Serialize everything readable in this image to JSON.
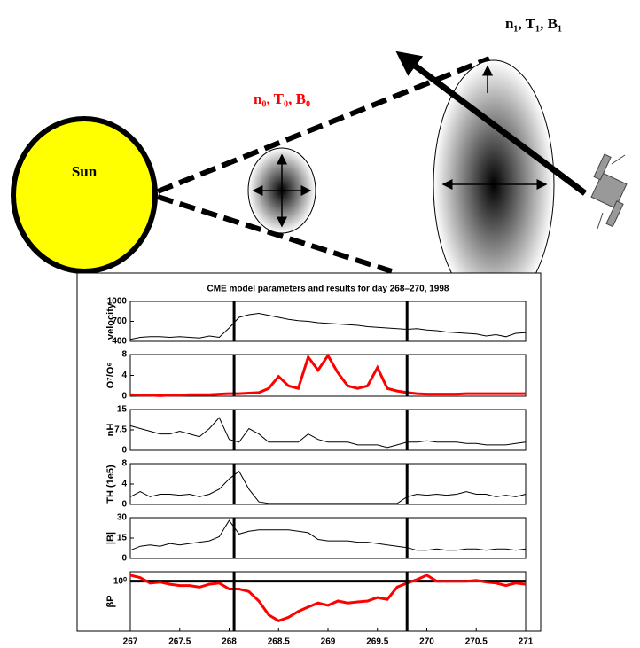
{
  "diagram": {
    "sun_label": "Sun",
    "inner_label": "n₀, T₀, B₀",
    "outer_label": "n₁, T₁, B₁",
    "figure_title": "CME model parameters and results for day 268–270, 1998"
  },
  "chart_data": [
    {
      "type": "line",
      "ylabel": "velocity",
      "color": "#000000",
      "xlim": [
        267,
        271
      ],
      "ylim": [
        400,
        1000
      ],
      "yticks": [
        400,
        700,
        1000
      ],
      "vlines": [
        268.05,
        269.8
      ],
      "x": [
        267,
        267.1,
        267.2,
        267.3,
        267.4,
        267.5,
        267.6,
        267.7,
        267.8,
        267.9,
        268,
        268.1,
        268.2,
        268.3,
        268.4,
        268.5,
        268.6,
        268.7,
        268.8,
        268.9,
        269,
        269.1,
        269.2,
        269.3,
        269.4,
        269.5,
        269.6,
        269.7,
        269.8,
        269.9,
        270,
        270.1,
        270.2,
        270.3,
        270.4,
        270.5,
        270.6,
        270.7,
        270.8,
        270.9,
        271
      ],
      "values": [
        430,
        460,
        470,
        470,
        460,
        470,
        460,
        450,
        480,
        460,
        600,
        760,
        800,
        820,
        790,
        760,
        730,
        710,
        700,
        680,
        670,
        660,
        650,
        640,
        620,
        610,
        600,
        590,
        580,
        590,
        570,
        560,
        540,
        530,
        520,
        510,
        480,
        500,
        470,
        520,
        530
      ]
    },
    {
      "type": "line",
      "ylabel": "O⁷/O⁶",
      "color": "#ff0000",
      "xlim": [
        267,
        271
      ],
      "ylim": [
        0,
        8
      ],
      "yticks": [
        0,
        4,
        8
      ],
      "vlines": [
        268.05,
        269.8
      ],
      "x": [
        267,
        267.1,
        267.2,
        267.3,
        267.4,
        267.5,
        267.6,
        267.7,
        267.8,
        267.9,
        268,
        268.1,
        268.2,
        268.3,
        268.4,
        268.5,
        268.6,
        268.7,
        268.8,
        268.9,
        269,
        269.1,
        269.2,
        269.3,
        269.4,
        269.5,
        269.6,
        269.7,
        269.8,
        269.9,
        270,
        270.1,
        270.2,
        270.3,
        270.4,
        270.5,
        270.6,
        270.7,
        270.8,
        270.9,
        271
      ],
      "values": [
        0.3,
        0.2,
        0.2,
        0.1,
        0.2,
        0.2,
        0.3,
        0.3,
        0.3,
        0.4,
        0.5,
        0.5,
        0.6,
        0.7,
        1.5,
        3.8,
        2.0,
        1.5,
        7.5,
        5.0,
        7.8,
        4.5,
        2.0,
        1.5,
        2.0,
        5.5,
        1.5,
        1.0,
        0.7,
        0.5,
        0.4,
        0.4,
        0.4,
        0.4,
        0.5,
        0.5,
        0.5,
        0.5,
        0.5,
        0.5,
        0.5
      ]
    },
    {
      "type": "line",
      "ylabel": "nH",
      "color": "#000000",
      "xlim": [
        267,
        271
      ],
      "ylim": [
        0,
        15
      ],
      "yticks": [
        0,
        7.5,
        15
      ],
      "vlines": [
        268.05,
        269.8
      ],
      "x": [
        267,
        267.1,
        267.2,
        267.3,
        267.4,
        267.5,
        267.6,
        267.7,
        267.8,
        267.9,
        268,
        268.1,
        268.2,
        268.3,
        268.4,
        268.5,
        268.6,
        268.7,
        268.8,
        268.9,
        269,
        269.1,
        269.2,
        269.3,
        269.4,
        269.5,
        269.6,
        269.7,
        269.8,
        269.9,
        270,
        270.1,
        270.2,
        270.3,
        270.4,
        270.5,
        270.6,
        270.7,
        270.8,
        270.9,
        271
      ],
      "values": [
        9,
        8,
        7,
        6,
        6,
        7,
        6,
        5,
        8,
        12,
        4,
        3,
        8,
        6,
        3,
        3,
        3,
        3,
        6,
        4,
        3,
        3,
        3,
        2,
        2,
        2,
        1,
        2,
        3,
        3,
        3.5,
        3,
        3,
        3,
        2.5,
        2.5,
        2,
        2,
        2,
        2.5,
        3
      ]
    },
    {
      "type": "line",
      "ylabel": "TH (1e5)",
      "color": "#000000",
      "xlim": [
        267,
        271
      ],
      "ylim": [
        0,
        8
      ],
      "yticks": [
        0,
        4,
        8
      ],
      "vlines": [
        268.05,
        269.8
      ],
      "x": [
        267,
        267.1,
        267.2,
        267.3,
        267.4,
        267.5,
        267.6,
        267.7,
        267.8,
        267.9,
        268,
        268.1,
        268.2,
        268.3,
        268.4,
        268.5,
        268.6,
        268.7,
        268.8,
        268.9,
        269,
        269.1,
        269.2,
        269.3,
        269.4,
        269.5,
        269.6,
        269.7,
        269.8,
        269.9,
        270,
        270.1,
        270.2,
        270.3,
        270.4,
        270.5,
        270.6,
        270.7,
        270.8,
        270.9,
        271
      ],
      "values": [
        1.5,
        2.5,
        1.5,
        2,
        2,
        1.8,
        2,
        1.5,
        2,
        3,
        5,
        6.5,
        3,
        0.5,
        0.2,
        0.2,
        0.2,
        0.2,
        0.2,
        0.2,
        0.2,
        0.2,
        0.2,
        0.2,
        0.2,
        0.2,
        0.2,
        0.2,
        1.5,
        2,
        1.8,
        2,
        1.8,
        2,
        2.5,
        2,
        2,
        1.5,
        1.8,
        1.5,
        2
      ]
    },
    {
      "type": "line",
      "ylabel": "|B|",
      "color": "#000000",
      "xlim": [
        267,
        271
      ],
      "ylim": [
        0,
        30
      ],
      "yticks": [
        0,
        15,
        30
      ],
      "vlines": [
        268.05,
        269.8
      ],
      "x": [
        267,
        267.1,
        267.2,
        267.3,
        267.4,
        267.5,
        267.6,
        267.7,
        267.8,
        267.9,
        268,
        268.1,
        268.2,
        268.3,
        268.4,
        268.5,
        268.6,
        268.7,
        268.8,
        268.9,
        269,
        269.1,
        269.2,
        269.3,
        269.4,
        269.5,
        269.6,
        269.7,
        269.8,
        269.9,
        270,
        270.1,
        270.2,
        270.3,
        270.4,
        270.5,
        270.6,
        270.7,
        270.8,
        270.9,
        271
      ],
      "values": [
        6,
        9,
        10,
        9,
        11,
        10,
        11,
        12,
        13,
        16,
        28,
        18,
        20,
        21,
        21,
        21,
        21,
        20,
        19,
        14,
        13,
        13,
        13,
        12,
        12,
        11,
        10,
        9,
        8,
        6,
        6,
        7,
        6,
        6,
        7,
        7,
        6,
        7,
        7,
        6,
        7
      ]
    },
    {
      "type": "line",
      "ylabel": "βP",
      "color": "#ff0000",
      "log_y": true,
      "xlim": [
        267,
        271
      ],
      "ylim": [
        0.003,
        3
      ],
      "yticks": [
        {
          "value": 1,
          "label": "10⁰"
        }
      ],
      "hline": 1,
      "vlines": [
        268.05,
        269.8
      ],
      "xticks": [
        267,
        267.5,
        268,
        268.5,
        269,
        269.5,
        270,
        270.5,
        271
      ],
      "x": [
        267,
        267.1,
        267.2,
        267.3,
        267.4,
        267.5,
        267.6,
        267.7,
        267.8,
        267.9,
        268,
        268.1,
        268.2,
        268.3,
        268.4,
        268.5,
        268.6,
        268.7,
        268.8,
        268.9,
        269,
        269.1,
        269.2,
        269.3,
        269.4,
        269.5,
        269.6,
        269.7,
        269.8,
        269.9,
        270,
        270.1,
        270.2,
        270.3,
        270.4,
        270.5,
        270.6,
        270.7,
        270.8,
        270.9,
        271
      ],
      "values": [
        2,
        1.5,
        0.8,
        0.9,
        0.7,
        0.6,
        0.6,
        0.5,
        0.7,
        0.8,
        0.4,
        0.4,
        0.3,
        0.1,
        0.02,
        0.01,
        0.015,
        0.03,
        0.05,
        0.08,
        0.06,
        0.1,
        0.08,
        0.09,
        0.1,
        0.15,
        0.12,
        0.5,
        0.8,
        1.2,
        2,
        1,
        1,
        1,
        1,
        1.1,
        0.9,
        0.8,
        0.6,
        0.8,
        0.7
      ]
    }
  ]
}
